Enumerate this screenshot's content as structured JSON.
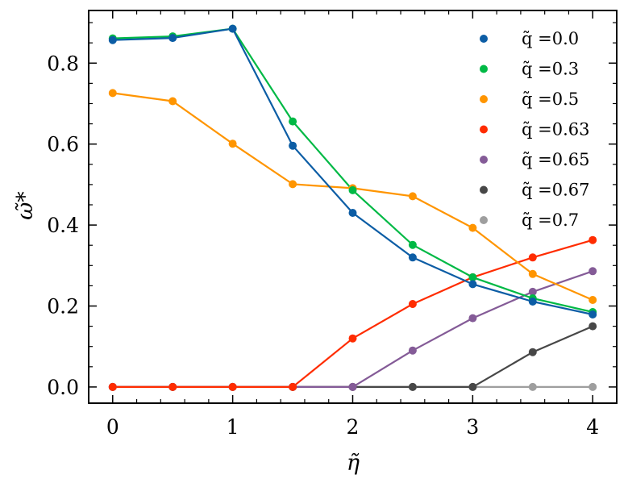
{
  "chart_data": {
    "type": "line",
    "xlabel": "η̃",
    "ylabel": "ω̃*",
    "xlim": [
      -0.2,
      4.2
    ],
    "ylim": [
      -0.04,
      0.93
    ],
    "x": [
      0,
      0.5,
      1,
      1.5,
      2,
      2.5,
      3,
      3.5,
      4
    ],
    "x_ticks": [
      "0",
      "1",
      "2",
      "3",
      "4"
    ],
    "y_ticks": [
      "0.0",
      "0.2",
      "0.4",
      "0.6",
      "0.8"
    ],
    "x_tick_values": [
      0,
      1,
      2,
      3,
      4
    ],
    "y_tick_values": [
      0,
      0.2,
      0.4,
      0.6,
      0.8
    ],
    "legend_position": "top-right",
    "grid": false,
    "series": [
      {
        "name": "q̃ =0.0",
        "color": "#0C5DA5",
        "values": [
          0.857,
          0.862,
          0.885,
          0.596,
          0.43,
          0.32,
          0.254,
          0.211,
          0.179
        ]
      },
      {
        "name": "q̃ =0.3",
        "color": "#00B945",
        "values": [
          0.861,
          0.866,
          0.885,
          0.656,
          0.486,
          0.351,
          0.271,
          0.219,
          0.185
        ]
      },
      {
        "name": "q̃ =0.5",
        "color": "#FF9500",
        "values": [
          0.726,
          0.706,
          0.601,
          0.501,
          0.491,
          0.471,
          0.393,
          0.279,
          0.215
        ]
      },
      {
        "name": "q̃ =0.63",
        "color": "#FF2C00",
        "values": [
          0.0,
          0.0,
          0.0,
          0.0,
          0.12,
          0.205,
          0.271,
          0.32,
          0.363
        ]
      },
      {
        "name": "q̃ =0.65",
        "color": "#845B97",
        "values": [
          0.0,
          0.0,
          0.0,
          0.0,
          0.0,
          0.09,
          0.17,
          0.235,
          0.286
        ]
      },
      {
        "name": "q̃ =0.67",
        "color": "#474747",
        "values": [
          0.0,
          0.0,
          0.0,
          0.0,
          0.0,
          0.0,
          0.0,
          0.086,
          0.15
        ]
      },
      {
        "name": "q̃ =0.7",
        "color": "#9E9E9E",
        "values": [
          0.0,
          0.0,
          0.0,
          0.0,
          0.0,
          0.0,
          0.0,
          0.0,
          0.0
        ]
      }
    ]
  }
}
